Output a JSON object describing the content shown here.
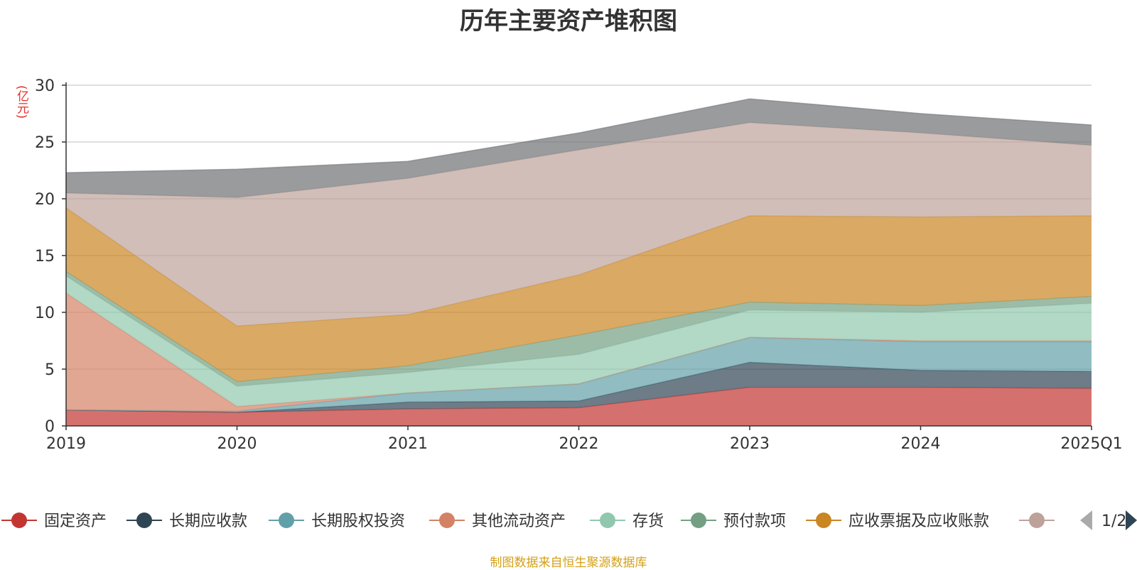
{
  "title": "历年主要资产堆积图",
  "unit": "(亿元)",
  "source": "制图数据来自恒生聚源数据库",
  "legend_page": "1/2",
  "chart_data": {
    "type": "area",
    "stacked": true,
    "title": "历年主要资产堆积图",
    "ylabel": "(亿元)",
    "xlabel": "",
    "categories": [
      "2019",
      "2020",
      "2021",
      "2022",
      "2023",
      "2024",
      "2025Q1"
    ],
    "ylim": [
      0,
      30
    ],
    "yticks": [
      0,
      5,
      10,
      15,
      20,
      25,
      30
    ],
    "grid": true,
    "legend_position": "bottom",
    "series": [
      {
        "name": "固定资产",
        "color": "#c23531",
        "line": "#c23531",
        "values": [
          1.4,
          1.2,
          1.5,
          1.6,
          3.4,
          3.4,
          3.3
        ]
      },
      {
        "name": "长期应收款",
        "color": "#2f4554",
        "line": "#2f4554",
        "values": [
          0.0,
          0.0,
          0.6,
          0.6,
          2.2,
          1.5,
          1.5
        ]
      },
      {
        "name": "长期股权投资",
        "color": "#61a0a8",
        "line": "#61a0a8",
        "values": [
          0.0,
          0.1,
          0.8,
          1.5,
          2.2,
          2.5,
          2.6
        ]
      },
      {
        "name": "其他流动资产",
        "color": "#d48265",
        "line": "#d48265",
        "values": [
          10.3,
          0.4,
          0.0,
          0.0,
          0.0,
          0.1,
          0.1
        ]
      },
      {
        "name": "存货",
        "color": "#91c7ae",
        "line": "#91c7ae",
        "values": [
          1.5,
          1.8,
          1.8,
          2.6,
          2.4,
          2.5,
          3.3
        ]
      },
      {
        "name": "预付款项",
        "color": "#749f83",
        "line": "#749f83",
        "values": [
          0.4,
          0.4,
          0.6,
          1.7,
          0.7,
          0.6,
          0.6
        ]
      },
      {
        "name": "应收票据及应收账款",
        "color": "#ca8622",
        "line": "#ca8622",
        "values": [
          5.6,
          4.9,
          4.5,
          5.3,
          7.6,
          7.8,
          7.1
        ]
      },
      {
        "name": "",
        "color": "#bda29a",
        "line": "#bda29a",
        "values": [
          1.3,
          11.3,
          12.0,
          11.0,
          8.2,
          7.4,
          6.2
        ]
      },
      {
        "name": "",
        "color": "#6e7074",
        "line": "#6e7074",
        "values": [
          1.8,
          2.5,
          1.5,
          1.5,
          2.1,
          1.7,
          1.8
        ]
      }
    ]
  }
}
